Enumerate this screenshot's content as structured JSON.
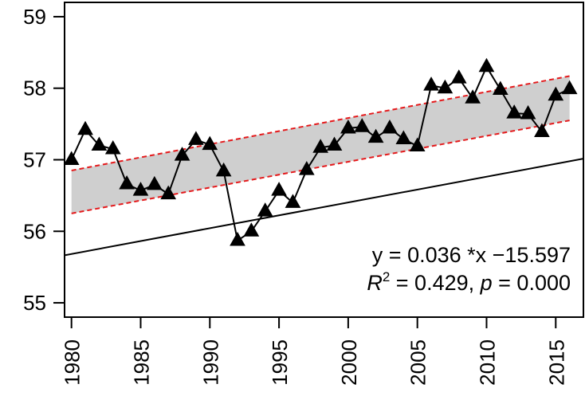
{
  "chart_data": {
    "type": "line",
    "x": [
      1980,
      1981,
      1982,
      1983,
      1984,
      1985,
      1986,
      1987,
      1988,
      1989,
      1990,
      1991,
      1992,
      1993,
      1994,
      1995,
      1996,
      1997,
      1998,
      1999,
      2000,
      2001,
      2002,
      2003,
      2004,
      2005,
      2006,
      2007,
      2008,
      2009,
      2010,
      2011,
      2012,
      2013,
      2014,
      2015,
      2016
    ],
    "series": [
      {
        "values": [
          57.0,
          57.42,
          57.2,
          57.15,
          56.66,
          56.57,
          56.65,
          56.52,
          57.06,
          57.28,
          57.21,
          56.84,
          55.87,
          56.0,
          56.28,
          56.57,
          56.4,
          56.86,
          57.17,
          57.2,
          57.44,
          57.46,
          57.31,
          57.44,
          57.29,
          57.19,
          58.04,
          58.0,
          58.14,
          57.86,
          58.3,
          57.98,
          57.65,
          57.64,
          57.39,
          57.9,
          57.99
        ],
        "marker": "filled-triangle",
        "line_color": "#000000"
      }
    ],
    "fit": {
      "slope": 0.036,
      "intercept": -15.597,
      "line_color": "#000000",
      "band_fill": "#cfcfcf",
      "band_edge_color": "#e41a1c",
      "band_x": [
        1980,
        2016
      ],
      "band_lower": [
        56.25,
        57.55
      ],
      "band_upper": [
        56.85,
        58.17
      ]
    },
    "xlim": [
      1979.5,
      2017.0
    ],
    "ylim": [
      54.8,
      59.2
    ],
    "x_ticks": [
      1980,
      1985,
      1990,
      1995,
      2000,
      2005,
      2010,
      2015
    ],
    "y_ticks": [
      55,
      56,
      57,
      58,
      59
    ],
    "grid": false,
    "title": "",
    "xlabel": "",
    "ylabel": "",
    "annotations": {
      "equation": "y =  0.036 *x −15.597",
      "r2_symbol": "R",
      "r2_sup": "2",
      "r2_value": " = 0.429, ",
      "p_symbol": "p",
      "p_value": " = 0.000"
    }
  }
}
